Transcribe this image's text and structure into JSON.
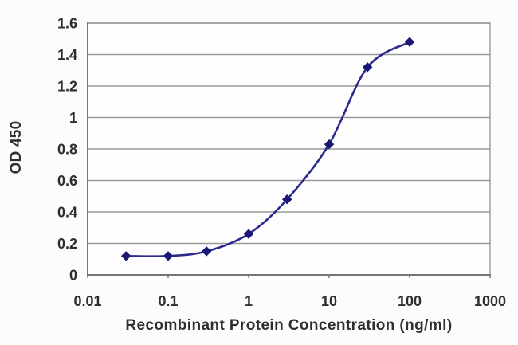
{
  "chart_data": {
    "type": "line",
    "title": "",
    "xlabel": "Recombinant Protein Concentration (ng/ml)",
    "ylabel": "OD 450",
    "x_scale": "log",
    "y_scale": "linear",
    "xlim": [
      0.01,
      1000
    ],
    "ylim": [
      0,
      1.6
    ],
    "x_ticks": [
      0.01,
      0.1,
      1,
      10,
      100,
      1000
    ],
    "x_tick_labels": [
      "0.01",
      "0.1",
      "1",
      "10",
      "100",
      "1000"
    ],
    "y_ticks": [
      0,
      0.2,
      0.4,
      0.6,
      0.8,
      1,
      1.2,
      1.4,
      1.6
    ],
    "y_tick_labels": [
      "0",
      "0.2",
      "0.4",
      "0.6",
      "0.8",
      "1",
      "1.2",
      "1.4",
      "1.6"
    ],
    "grid": true,
    "legend": false,
    "marker": "diamond",
    "line_style": "smooth",
    "series": [
      {
        "name": "OD 450",
        "x": [
          0.03,
          0.1,
          0.3,
          1,
          3,
          10,
          30,
          100
        ],
        "y": [
          0.12,
          0.12,
          0.15,
          0.26,
          0.48,
          0.83,
          1.32,
          1.48
        ]
      }
    ],
    "colors": {
      "line": "#2b2b8e",
      "marker": "#181874",
      "grid": "#9a9a9a",
      "axis": "#767676",
      "text": "#2e2e2e",
      "plot_bg": "#fefefe",
      "page_bg": "#fcfcfb"
    }
  }
}
